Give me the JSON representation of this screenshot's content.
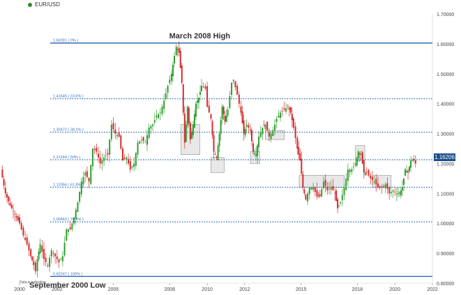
{
  "legend": {
    "symbol": "EUR/USD",
    "dot_color": "#2e8b2e"
  },
  "note": "Data is indicative",
  "last_price_label": "1.16206",
  "chart_data": {
    "type": "candlestick",
    "title": "",
    "xlabel": "",
    "ylabel": "",
    "xlim": [
      2000,
      2022
    ],
    "ylim": [
      0.8,
      1.7
    ],
    "y_ticks": [
      "0.80000",
      "0.90000",
      "1.00000",
      "1.10000",
      "1.20000",
      "1.30000",
      "1.40000",
      "1.50000",
      "1.60000",
      "1.70000"
    ],
    "x_ticks": [
      "2000",
      "2002",
      "2005",
      "2008",
      "2010",
      "2012",
      "2015",
      "2018",
      "2020",
      "2022"
    ],
    "colors": {
      "up": "#2e9e2e",
      "down": "#d42a2a",
      "support": "#1f5fb0",
      "fib": "#3470c0"
    },
    "annotations": [
      {
        "text": "March 2008 High",
        "x": 2008.2,
        "y": 1.6
      },
      {
        "text": "September 2000 Low",
        "x": 2000.3,
        "y": 0.8225
      }
    ],
    "support_lines": [
      {
        "y": 1.6028
      },
      {
        "y": 0.8225
      }
    ],
    "fib_levels": [
      {
        "label": "1.60281 ( 0% )",
        "y": 1.60281
      },
      {
        "label": "1.41645 ( 23.6% )",
        "y": 1.41645
      },
      {
        "label": "1.30472 ( 38.2% )",
        "y": 1.30472
      },
      {
        "label": "1.21244 ( 50% )",
        "y": 1.21244
      },
      {
        "label": "1.12056 ( 61.8% )",
        "y": 1.12056
      },
      {
        "label": "1.00463 ( 76.4% )",
        "y": 1.00463
      },
      {
        "label": "0.82247 ( 100% )",
        "y": 0.82247
      }
    ],
    "highlight_boxes": [
      {
        "x0": 2008.6,
        "x1": 2009.6,
        "y0": 1.23,
        "y1": 1.33
      },
      {
        "x0": 2010.2,
        "x1": 2010.9,
        "y0": 1.17,
        "y1": 1.22
      },
      {
        "x0": 2012.3,
        "x1": 2012.8,
        "y0": 1.2,
        "y1": 1.24
      },
      {
        "x0": 2013.1,
        "x1": 2014.1,
        "y0": 1.28,
        "y1": 1.31
      },
      {
        "x0": 2014.9,
        "x1": 2017.3,
        "y0": 1.12,
        "y1": 1.16
      },
      {
        "x0": 2017.9,
        "x1": 2018.4,
        "y0": 1.21,
        "y1": 1.26
      },
      {
        "x0": 2018.8,
        "x1": 2019.8,
        "y0": 1.12,
        "y1": 1.16
      }
    ],
    "last_price": 1.16206,
    "series": [
      {
        "values": [
          [
            1999.0,
            1.18
          ],
          [
            1999.25,
            1.1
          ],
          [
            1999.5,
            1.06
          ],
          [
            1999.75,
            1.03
          ],
          [
            2000.0,
            1.0
          ],
          [
            2000.2,
            0.96
          ],
          [
            2000.4,
            0.93
          ],
          [
            2000.6,
            0.89
          ],
          [
            2000.75,
            0.86
          ],
          [
            2000.85,
            0.84
          ],
          [
            2000.95,
            0.88
          ],
          [
            2001.1,
            0.93
          ],
          [
            2001.3,
            0.88
          ],
          [
            2001.5,
            0.86
          ],
          [
            2001.7,
            0.91
          ],
          [
            2001.9,
            0.89
          ],
          [
            2002.1,
            0.87
          ],
          [
            2002.3,
            0.89
          ],
          [
            2002.5,
            0.98
          ],
          [
            2002.7,
            0.98
          ],
          [
            2002.9,
            1.02
          ],
          [
            2003.1,
            1.07
          ],
          [
            2003.3,
            1.14
          ],
          [
            2003.5,
            1.17
          ],
          [
            2003.7,
            1.14
          ],
          [
            2003.9,
            1.25
          ],
          [
            2004.1,
            1.24
          ],
          [
            2004.3,
            1.2
          ],
          [
            2004.5,
            1.22
          ],
          [
            2004.7,
            1.23
          ],
          [
            2004.9,
            1.33
          ],
          [
            2005.1,
            1.3
          ],
          [
            2005.3,
            1.29
          ],
          [
            2005.5,
            1.21
          ],
          [
            2005.7,
            1.22
          ],
          [
            2005.9,
            1.18
          ],
          [
            2006.1,
            1.2
          ],
          [
            2006.3,
            1.27
          ],
          [
            2006.5,
            1.28
          ],
          [
            2006.7,
            1.27
          ],
          [
            2006.9,
            1.32
          ],
          [
            2007.1,
            1.33
          ],
          [
            2007.3,
            1.36
          ],
          [
            2007.5,
            1.37
          ],
          [
            2007.7,
            1.41
          ],
          [
            2007.9,
            1.46
          ],
          [
            2008.1,
            1.5
          ],
          [
            2008.25,
            1.56
          ],
          [
            2008.35,
            1.59
          ],
          [
            2008.5,
            1.57
          ],
          [
            2008.65,
            1.47
          ],
          [
            2008.8,
            1.27
          ],
          [
            2008.95,
            1.39
          ],
          [
            2009.1,
            1.28
          ],
          [
            2009.25,
            1.33
          ],
          [
            2009.4,
            1.4
          ],
          [
            2009.55,
            1.42
          ],
          [
            2009.7,
            1.46
          ],
          [
            2009.9,
            1.45
          ],
          [
            2010.0,
            1.39
          ],
          [
            2010.2,
            1.35
          ],
          [
            2010.35,
            1.24
          ],
          [
            2010.5,
            1.22
          ],
          [
            2010.65,
            1.3
          ],
          [
            2010.8,
            1.39
          ],
          [
            2010.95,
            1.34
          ],
          [
            2011.1,
            1.38
          ],
          [
            2011.3,
            1.47
          ],
          [
            2011.4,
            1.48
          ],
          [
            2011.6,
            1.43
          ],
          [
            2011.8,
            1.37
          ],
          [
            2011.95,
            1.3
          ],
          [
            2012.1,
            1.33
          ],
          [
            2012.3,
            1.31
          ],
          [
            2012.45,
            1.24
          ],
          [
            2012.6,
            1.23
          ],
          [
            2012.75,
            1.29
          ],
          [
            2012.95,
            1.32
          ],
          [
            2013.1,
            1.33
          ],
          [
            2013.3,
            1.29
          ],
          [
            2013.5,
            1.31
          ],
          [
            2013.7,
            1.35
          ],
          [
            2013.9,
            1.37
          ],
          [
            2014.1,
            1.38
          ],
          [
            2014.3,
            1.39
          ],
          [
            2014.45,
            1.37
          ],
          [
            2014.6,
            1.32
          ],
          [
            2014.8,
            1.25
          ],
          [
            2014.95,
            1.21
          ],
          [
            2015.1,
            1.12
          ],
          [
            2015.25,
            1.08
          ],
          [
            2015.45,
            1.12
          ],
          [
            2015.65,
            1.12
          ],
          [
            2015.85,
            1.09
          ],
          [
            2016.0,
            1.09
          ],
          [
            2016.2,
            1.14
          ],
          [
            2016.4,
            1.11
          ],
          [
            2016.6,
            1.12
          ],
          [
            2016.8,
            1.1
          ],
          [
            2016.95,
            1.05
          ],
          [
            2017.1,
            1.07
          ],
          [
            2017.3,
            1.12
          ],
          [
            2017.5,
            1.18
          ],
          [
            2017.7,
            1.18
          ],
          [
            2017.9,
            1.2
          ],
          [
            2018.05,
            1.24
          ],
          [
            2018.2,
            1.23
          ],
          [
            2018.35,
            1.17
          ],
          [
            2018.5,
            1.17
          ],
          [
            2018.7,
            1.15
          ],
          [
            2018.9,
            1.14
          ],
          [
            2019.1,
            1.12
          ],
          [
            2019.3,
            1.12
          ],
          [
            2019.5,
            1.13
          ],
          [
            2019.7,
            1.1
          ],
          [
            2019.9,
            1.11
          ],
          [
            2020.1,
            1.1
          ],
          [
            2020.25,
            1.1
          ],
          [
            2020.4,
            1.12
          ],
          [
            2020.55,
            1.18
          ],
          [
            2020.7,
            1.17
          ],
          [
            2020.85,
            1.21
          ],
          [
            2021.0,
            1.21
          ],
          [
            2021.1,
            1.2
          ]
        ]
      }
    ]
  }
}
